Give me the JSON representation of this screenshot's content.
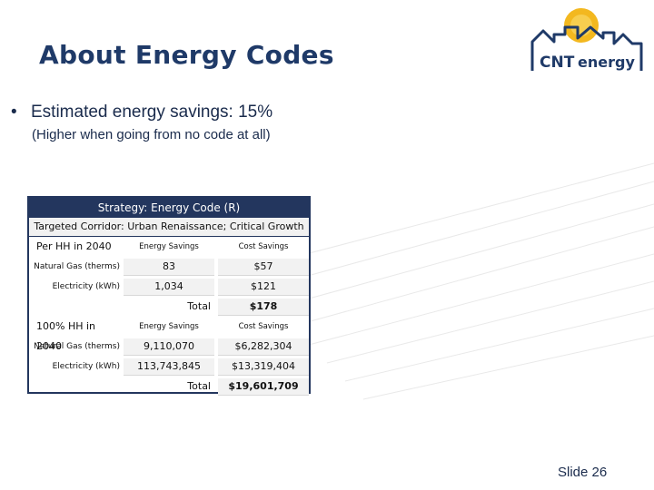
{
  "slide": {
    "title": "About Energy Codes",
    "bullet_marker": "•",
    "bullet": "Estimated energy savings: 15%",
    "sub_bullet": "(Higher when going from no code at all)",
    "slide_number": "Slide 26"
  },
  "logo": {
    "text_cnt": "CNT",
    "text_energy": "energy",
    "colors": {
      "navy": "#1f3a68",
      "gold": "#f0b21a"
    }
  },
  "table": {
    "title": "Strategy:  Energy Code (R)",
    "subtitle": "Targeted Corridor: Urban Renaissance; Critical Growth",
    "section1": {
      "header": "Per HH in 2040",
      "col_energy": "Energy Savings",
      "col_cost": "Cost Savings",
      "rows": [
        {
          "label": "Natural Gas (therms)",
          "energy": "83",
          "cost": "$57"
        },
        {
          "label": "Electricity (kWh)",
          "energy": "1,034",
          "cost": "$121"
        }
      ],
      "total_label": "Total",
      "total_value": "$178"
    },
    "section2": {
      "header": "100% HH in 2040",
      "col_energy": "Energy Savings",
      "col_cost": "Cost Savings",
      "rows": [
        {
          "label": "Natural Gas (therms)",
          "energy": "9,110,070",
          "cost": "$6,282,304"
        },
        {
          "label": "Electricity (kWh)",
          "energy": "113,743,845",
          "cost": "$13,319,404"
        }
      ],
      "total_label": "Total",
      "total_value": "$19,601,709"
    }
  }
}
